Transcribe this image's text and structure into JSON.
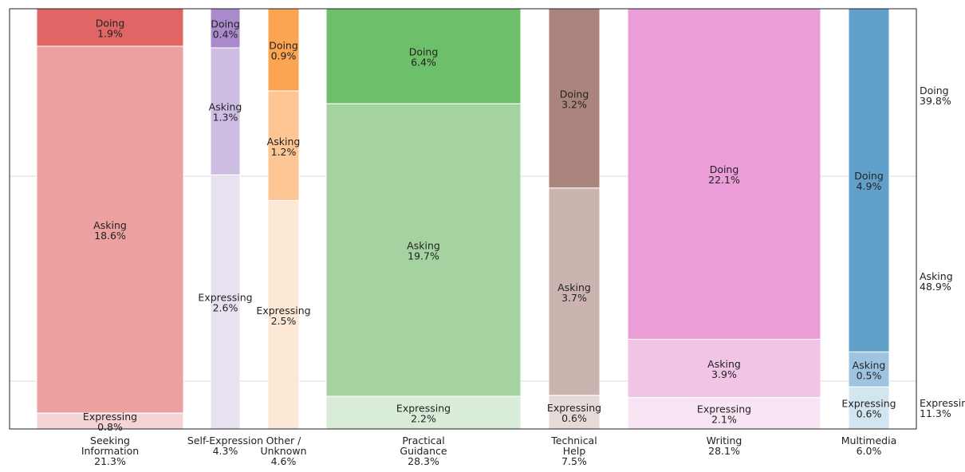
{
  "chart_data": {
    "type": "mosaic",
    "grid": true,
    "legend": "right",
    "categories": [
      {
        "label": [
          "Seeking",
          "Information",
          "21.3%"
        ],
        "share": 21.3,
        "colors": {
          "Doing": "#e06666",
          "Asking": "#eca1a0",
          "Expressing": "#f4d4d4"
        },
        "segments": [
          {
            "name": "Doing",
            "value": 1.9,
            "text": "1.9%"
          },
          {
            "name": "Asking",
            "value": 18.6,
            "text": "18.6%"
          },
          {
            "name": "Expressing",
            "value": 0.8,
            "text": "0.8%"
          }
        ]
      },
      {
        "label": [
          "Self-Expression",
          "4.3%"
        ],
        "share": 4.3,
        "colors": {
          "Doing": "#a98bcb",
          "Asking": "#cdbde3",
          "Expressing": "#e8e1f0"
        },
        "segments": [
          {
            "name": "Doing",
            "value": 0.4,
            "text": "0.4%"
          },
          {
            "name": "Asking",
            "value": 1.3,
            "text": "1.3%"
          },
          {
            "name": "Expressing",
            "value": 2.6,
            "text": "2.6%"
          }
        ]
      },
      {
        "label": [
          "Other /",
          "Unknown",
          "4.6%"
        ],
        "share": 4.6,
        "colors": {
          "Doing": "#fba452",
          "Asking": "#fec595",
          "Expressing": "#fde8d6"
        },
        "segments": [
          {
            "name": "Doing",
            "value": 0.9,
            "text": "0.9%"
          },
          {
            "name": "Asking",
            "value": 1.2,
            "text": "1.2%"
          },
          {
            "name": "Expressing",
            "value": 2.5,
            "text": "2.5%"
          }
        ]
      },
      {
        "label": [
          "Practical",
          "Guidance",
          "28.3%"
        ],
        "share": 28.3,
        "colors": {
          "Doing": "#6dbf6a",
          "Asking": "#a4d3a1",
          "Expressing": "#d9ecd8"
        },
        "segments": [
          {
            "name": "Doing",
            "value": 6.4,
            "text": "6.4%"
          },
          {
            "name": "Asking",
            "value": 19.7,
            "text": "19.7%"
          },
          {
            "name": "Expressing",
            "value": 2.2,
            "text": "2.2%"
          }
        ]
      },
      {
        "label": [
          "Technical",
          "Help",
          "7.5%"
        ],
        "share": 7.5,
        "colors": {
          "Doing": "#ab857d",
          "Asking": "#cbb4b0",
          "Expressing": "#e6dad8"
        },
        "segments": [
          {
            "name": "Doing",
            "value": 3.2,
            "text": "3.2%"
          },
          {
            "name": "Asking",
            "value": 3.7,
            "text": "3.7%"
          },
          {
            "name": "Expressing",
            "value": 0.6,
            "text": "0.6%"
          }
        ]
      },
      {
        "label": [
          "Writing",
          "28.1%"
        ],
        "share": 28.1,
        "colors": {
          "Doing": "#ea9dd6",
          "Asking": "#f2c4e6",
          "Expressing": "#f8e4f2"
        },
        "segments": [
          {
            "name": "Doing",
            "value": 22.1,
            "text": "22.1%"
          },
          {
            "name": "Asking",
            "value": 3.9,
            "text": "3.9%"
          },
          {
            "name": "Expressing",
            "value": 2.1,
            "text": "2.1%"
          }
        ]
      },
      {
        "label": [
          "Multimedia",
          "6.0%"
        ],
        "share": 6.0,
        "colors": {
          "Doing": "#62a0cc",
          "Asking": "#9fc4e2",
          "Expressing": "#d4e5f2"
        },
        "segments": [
          {
            "name": "Doing",
            "value": 4.9,
            "text": "4.9%"
          },
          {
            "name": "Asking",
            "value": 0.5,
            "text": "0.5%"
          },
          {
            "name": "Expressing",
            "value": 0.6,
            "text": "0.6%"
          }
        ]
      }
    ],
    "totals": [
      {
        "name": "Doing",
        "text": "39.8%"
      },
      {
        "name": "Asking",
        "text": "48.9%"
      },
      {
        "name": "Expressin",
        "text": "11.3%"
      }
    ]
  }
}
